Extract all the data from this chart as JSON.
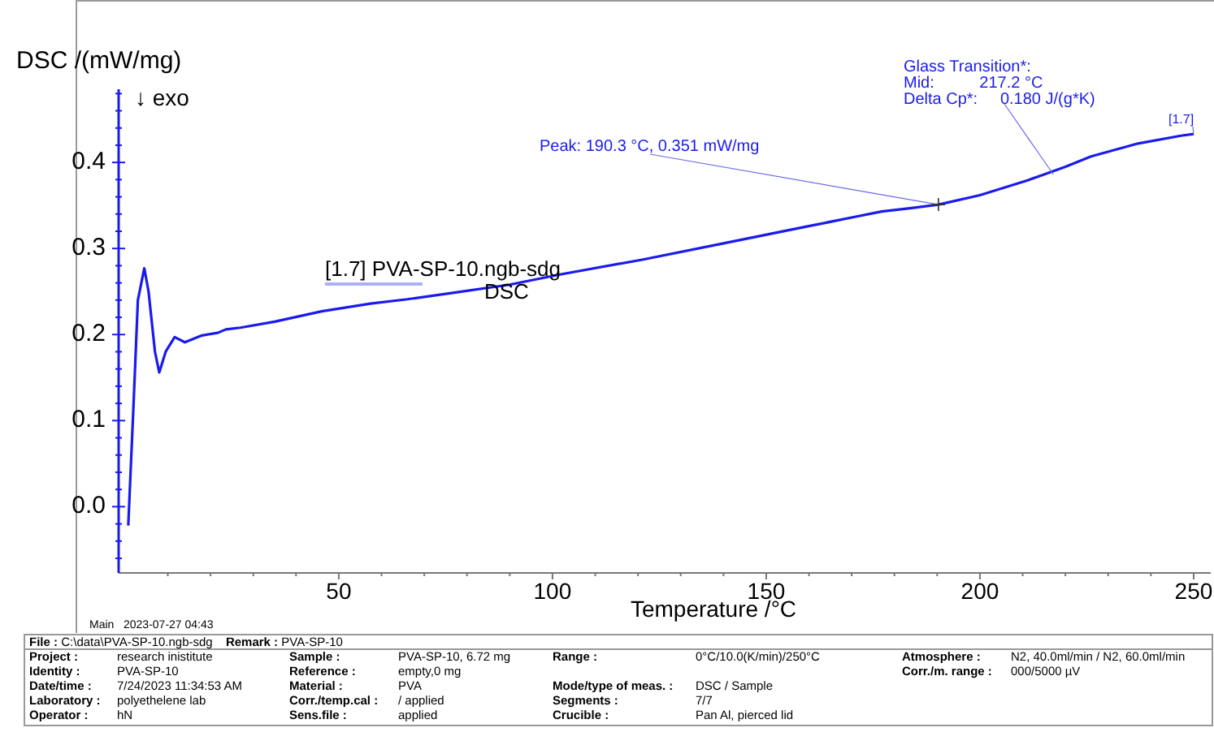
{
  "chart_data": {
    "type": "line",
    "xlabel": "Temperature /°C",
    "ylabel": "DSC /(mW/mg)",
    "xlim": [
      -1.5,
      254
    ],
    "ylim": [
      -0.077,
      0.485
    ],
    "xticks": [
      {
        "value": 10,
        "label": null
      },
      {
        "value": 20,
        "label": null
      },
      {
        "value": 30,
        "label": null
      },
      {
        "value": 40,
        "label": null
      },
      50,
      {
        "value": 60,
        "label": null
      },
      {
        "value": 70,
        "label": null
      },
      {
        "value": 80,
        "label": null
      },
      {
        "value": 90,
        "label": null
      },
      100,
      {
        "value": 110,
        "label": null
      },
      {
        "value": 120,
        "label": null
      },
      {
        "value": 130,
        "label": null
      },
      {
        "value": 140,
        "label": null
      },
      150,
      {
        "value": 160,
        "label": null
      },
      {
        "value": 170,
        "label": null
      },
      {
        "value": 180,
        "label": null
      },
      {
        "value": 190,
        "label": null
      },
      200,
      {
        "value": 210,
        "label": null
      },
      {
        "value": 220,
        "label": null
      },
      {
        "value": 230,
        "label": null
      },
      {
        "value": 240,
        "label": null
      },
      250
    ],
    "yticks": [
      {
        "value": -0.06,
        "label": null
      },
      {
        "value": -0.04,
        "label": null
      },
      {
        "value": -0.02,
        "label": null
      },
      {
        "value": 0,
        "label": "0.0"
      },
      {
        "value": 0.02,
        "label": null
      },
      {
        "value": 0.04,
        "label": null
      },
      {
        "value": 0.06,
        "label": null
      },
      {
        "value": 0.08,
        "label": null
      },
      {
        "value": 0.1,
        "label": "0.1"
      },
      {
        "value": 0.12,
        "label": null
      },
      {
        "value": 0.14,
        "label": null
      },
      {
        "value": 0.16,
        "label": null
      },
      {
        "value": 0.18,
        "label": null
      },
      {
        "value": 0.2,
        "label": "0.2"
      },
      {
        "value": 0.22,
        "label": null
      },
      {
        "value": 0.24,
        "label": null
      },
      {
        "value": 0.26,
        "label": null
      },
      {
        "value": 0.28,
        "label": null
      },
      {
        "value": 0.3,
        "label": "0.3"
      },
      {
        "value": 0.32,
        "label": null
      },
      {
        "value": 0.34,
        "label": null
      },
      {
        "value": 0.36,
        "label": null
      },
      {
        "value": 0.38,
        "label": null
      },
      {
        "value": 0.4,
        "label": "0.4"
      },
      {
        "value": 0.42,
        "label": null
      },
      {
        "value": 0.44,
        "label": null
      },
      {
        "value": 0.46,
        "label": null
      },
      {
        "value": 0.48,
        "label": null
      }
    ],
    "grid": false,
    "legend": "left",
    "marker": "none",
    "line_style": "solid",
    "series": [
      {
        "name": "[1.7] PVA-SP-10.ngb-sdg DSC",
        "color": "#1a1aee",
        "x": [
          0.75,
          2,
          3,
          4.5,
          5.5,
          7,
          8,
          9.5,
          11.6,
          14,
          18,
          21.7,
          23.6,
          27,
          35,
          46,
          57.4,
          66,
          76,
          90,
          102,
          121,
          140,
          159,
          170,
          177,
          184,
          190.3,
          200,
          211,
          215,
          220,
          226,
          237,
          247,
          250
        ],
        "values": [
          -0.022,
          0.12,
          0.24,
          0.277,
          0.25,
          0.18,
          0.156,
          0.18,
          0.197,
          0.191,
          0.199,
          0.202,
          0.206,
          0.208,
          0.215,
          0.227,
          0.236,
          0.241,
          0.248,
          0.258,
          0.27,
          0.287,
          0.306,
          0.325,
          0.336,
          0.343,
          0.347,
          0.351,
          0.362,
          0.379,
          0.386,
          0.395,
          0.407,
          0.422,
          0.431,
          0.433
        ]
      }
    ],
    "annotations": [
      "↓ exo",
      {
        "text": "Peak: 190.3 °C, 0.351 mW/mg",
        "x": 190.3,
        "y": 0.351
      },
      {
        "text": "Glass Transition*:\nMid:          217.2 °C\nDelta Cp*:     0.180 J/(g*K)",
        "x": 217.2,
        "y": 0.386
      },
      {
        "text": "[1.7]",
        "x": 250,
        "y": 0.433
      },
      "Main   2023-07-27 04:43",
      "File : C:\\data\\PVA-SP-10.ngb-sdg",
      "Remark : PVA-SP-10",
      "Project : research inistitute",
      "Identity : PVA-SP-10",
      "Date/time : 7/24/2023 11:34:53 AM",
      "Laboratory : polyethelene lab",
      "Operator : hN",
      "Sample : PVA-SP-10, 6.72 mg",
      "Reference : empty,0 mg",
      "Material : PVA",
      "Corr./temp.cal : / applied",
      "Sens.file : applied",
      "Range : 0°C/10.0(K/min)/250°C",
      "Mode/type of meas. : DSC / Sample",
      "Segments : 7/7",
      "Crucible : Pan Al, pierced lid",
      "Atmosphere : N2, 40.0ml/min / N2, 60.0ml/min",
      "Corr./m. range : 000/5000 µV"
    ]
  }
}
